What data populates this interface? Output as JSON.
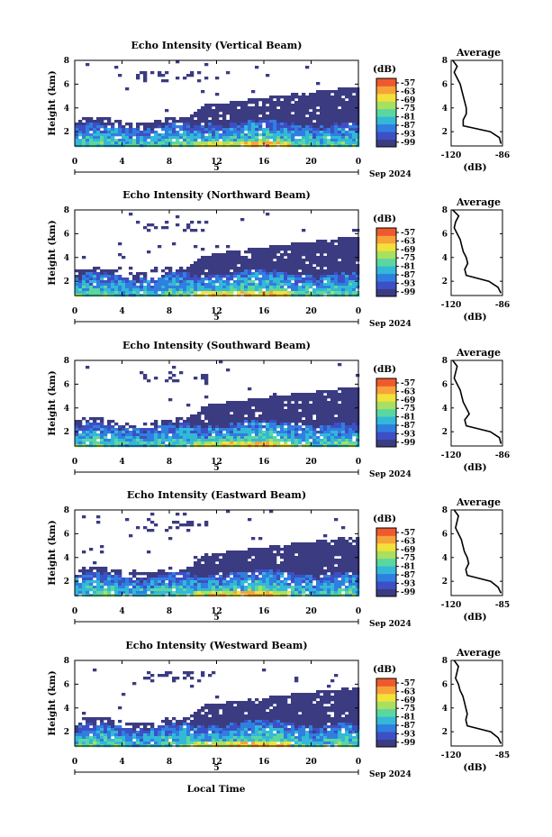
{
  "chart_data": {
    "type": "heatmap",
    "common": {
      "x_ticks": [
        "0",
        "4",
        "8",
        "12",
        "16",
        "20",
        "0"
      ],
      "y_ticks": [
        "8",
        "6",
        "4",
        "2"
      ],
      "day_label": "5",
      "date_label": "Sep 2024",
      "ylabel": "Height (km)",
      "unit_label": "(dB)",
      "colorbar_ticks": [
        "-57",
        "-63",
        "-69",
        "-75",
        "-81",
        "-87",
        "-93",
        "-99"
      ],
      "colorbar_colors": [
        "#3b3b82",
        "#3d4fc4",
        "#2f7fe0",
        "#33b8d8",
        "#5ad7a0",
        "#a9e060",
        "#f2e13b",
        "#f8a23a",
        "#ee5a2e"
      ],
      "avg_title": "Average",
      "avg_xlabel": "(dB)",
      "avg_y_ticks": [
        "8",
        "6",
        "4",
        "2"
      ]
    },
    "panels": [
      {
        "title": "Echo Intensity (Vertical Beam)",
        "avg_x_ticks": [
          "-120",
          "-86"
        ],
        "avg_profile_km": [
          1.0,
          1.5,
          2.0,
          2.5,
          3.0,
          3.5,
          4.0,
          4.5,
          5.0,
          5.5,
          6.0,
          6.5,
          7.0,
          7.5,
          8.0
        ],
        "avg_profile_db": [
          -87,
          -88,
          -94,
          -112,
          -112,
          -110,
          -110,
          -111,
          -112,
          -113,
          -114,
          -116,
          -118,
          -116,
          -119
        ]
      },
      {
        "title": "Echo Intensity (Northward Beam)",
        "avg_x_ticks": [
          "-120",
          "-86"
        ],
        "avg_profile_km": [
          1.0,
          1.5,
          2.0,
          2.5,
          3.0,
          3.5,
          4.0,
          4.5,
          5.0,
          5.5,
          6.0,
          6.5,
          7.0,
          7.5,
          8.0
        ],
        "avg_profile_db": [
          -87,
          -89,
          -95,
          -110,
          -111,
          -109,
          -110,
          -112,
          -113,
          -114,
          -116,
          -118,
          -117,
          -115,
          -119
        ]
      },
      {
        "title": "Echo Intensity (Southward Beam)",
        "avg_x_ticks": [
          "-120",
          "-86"
        ],
        "avg_profile_km": [
          1.0,
          1.5,
          2.0,
          2.5,
          3.0,
          3.5,
          4.0,
          4.5,
          5.0,
          5.5,
          6.0,
          6.5,
          7.0,
          7.5,
          8.0
        ],
        "avg_profile_db": [
          -87,
          -88,
          -94,
          -110,
          -111,
          -108,
          -110,
          -112,
          -113,
          -114,
          -116,
          -118,
          -117,
          -116,
          -119
        ]
      },
      {
        "title": "Echo Intensity (Eastward Beam)",
        "avg_x_ticks": [
          "-120",
          "-85"
        ],
        "avg_profile_km": [
          1.0,
          1.5,
          2.0,
          2.5,
          3.0,
          3.5,
          4.0,
          4.5,
          5.0,
          5.5,
          6.0,
          6.5,
          7.0,
          7.5,
          8.0
        ],
        "avg_profile_db": [
          -86,
          -88,
          -93,
          -109,
          -110,
          -108,
          -109,
          -111,
          -112,
          -113,
          -115,
          -117,
          -116,
          -115,
          -118
        ]
      },
      {
        "title": "Echo Intensity (Westward Beam)",
        "avg_x_ticks": [
          "-120",
          "-85"
        ],
        "avg_profile_km": [
          1.0,
          1.5,
          2.0,
          2.5,
          3.0,
          3.5,
          4.0,
          4.5,
          5.0,
          5.5,
          6.0,
          6.5,
          7.0,
          7.5,
          8.0
        ],
        "avg_profile_db": [
          -86,
          -88,
          -93,
          -109,
          -110,
          -109,
          -110,
          -111,
          -112,
          -114,
          -115,
          -117,
          -116,
          -115,
          -118
        ]
      }
    ],
    "xlabel": "Local Time"
  }
}
